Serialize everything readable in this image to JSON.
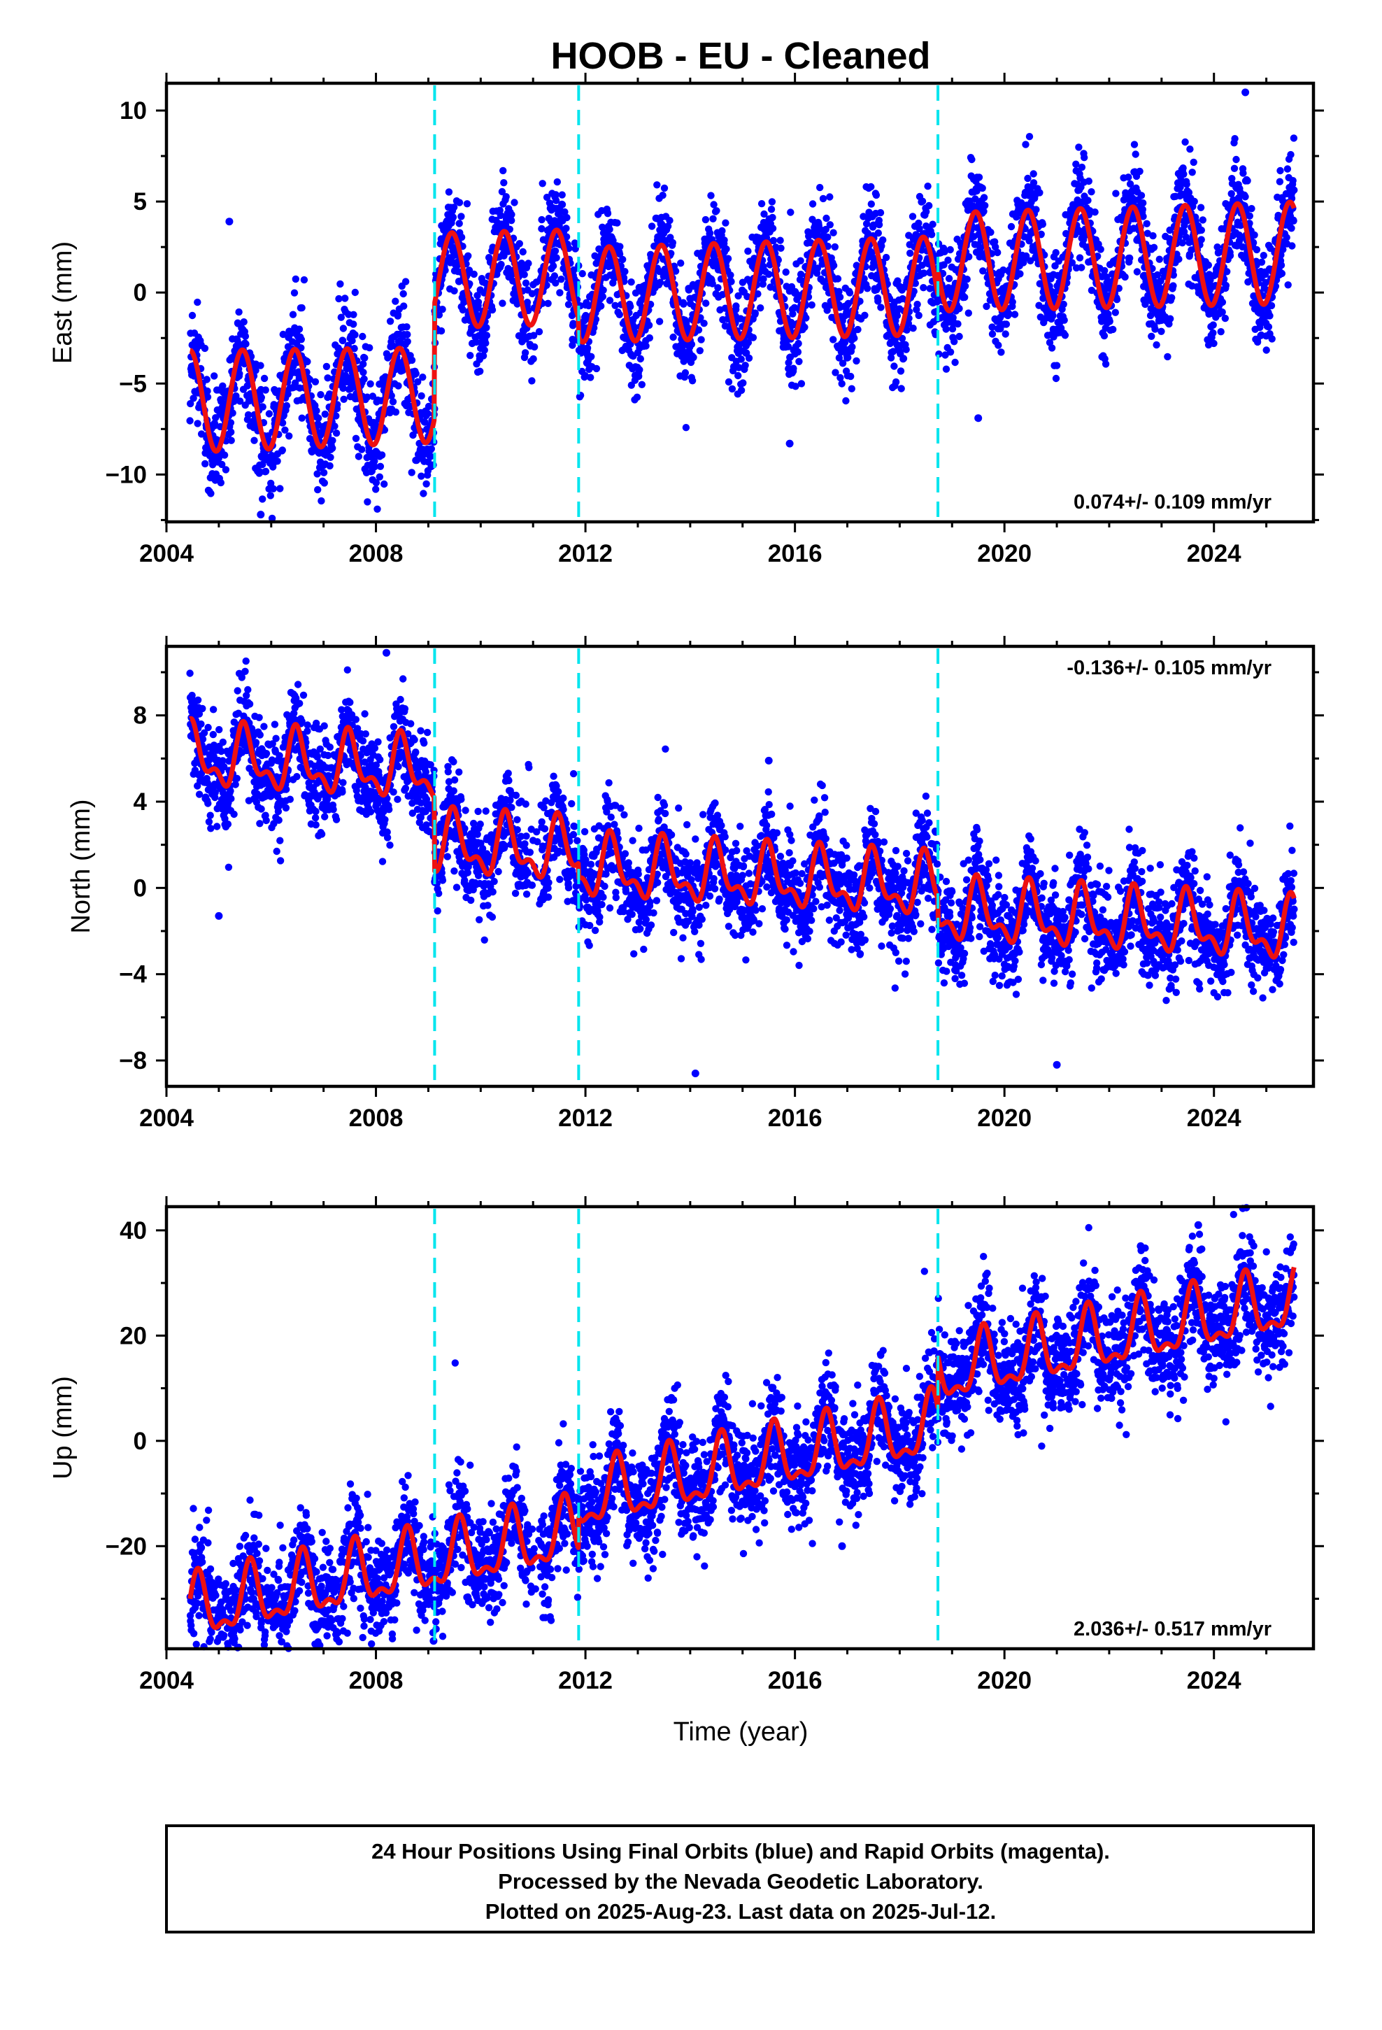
{
  "title": "HOOB  - EU - Cleaned",
  "xlabel": "Time (year)",
  "footer": {
    "line1": "24 Hour Positions Using Final Orbits (blue) and Rapid Orbits (magenta).",
    "line2": "Processed by the Nevada Geodetic Laboratory.",
    "line3": "Plotted on 2025-Aug-23. Last data on 2025-Jul-12."
  },
  "colors": {
    "data": "#0000ff",
    "model": "#ee1111",
    "steps": "#00e5ee",
    "frame": "#000000"
  },
  "chart_data": [
    {
      "type": "scatter",
      "ylabel": "East (mm)",
      "rate": "0.074+/- 0.109 mm/yr",
      "xlim": [
        2004.0,
        2025.9
      ],
      "ylim": [
        -12.6,
        11.5
      ],
      "xticks": [
        2004,
        2008,
        2012,
        2016,
        2020,
        2024
      ],
      "xtick_labels": [
        "2004",
        "2008",
        "2012",
        "2016",
        "2020",
        "2024"
      ],
      "yticks": [
        -10,
        -5,
        0,
        5,
        10
      ],
      "ytick_labels": [
        "−10",
        "−5",
        "0",
        "5",
        "10"
      ],
      "steps": [
        2009.12,
        2011.87,
        2018.73
      ],
      "data_start": 2004.45,
      "data_end": 2025.53,
      "model": {
        "offsets": [
          [
            2004.45,
            -5.2
          ],
          [
            2009.12,
            1.1
          ],
          [
            2011.87,
            0.1
          ],
          [
            2018.73,
            1.4
          ]
        ],
        "amplitudes": [
          [
            2004.45,
            2.8
          ],
          [
            2009.12,
            2.6
          ],
          [
            2011.87,
            2.6
          ],
          [
            2018.73,
            2.7
          ],
          [
            2025.53,
            2.8
          ]
        ],
        "trend_per_year": 0.074,
        "peak_phase": 0.45
      },
      "noise_sd": 1.4,
      "outliers": [
        [
          2005.2,
          3.9
        ],
        [
          2015.9,
          -8.3
        ],
        [
          2019.5,
          -6.9
        ],
        [
          2024.6,
          11.0
        ],
        [
          2005.8,
          -12.2
        ]
      ]
    },
    {
      "type": "scatter",
      "ylabel": "North (mm)",
      "rate": "-0.136+/- 0.105 mm/yr",
      "xlim": [
        2004.0,
        2025.9
      ],
      "ylim": [
        -9.2,
        11.2
      ],
      "xticks": [
        2004,
        2008,
        2012,
        2016,
        2020,
        2024
      ],
      "xtick_labels": [
        "2004",
        "2008",
        "2012",
        "2016",
        "2020",
        "2024"
      ],
      "yticks": [
        -8,
        -4,
        0,
        4,
        8
      ],
      "ytick_labels": [
        "−8",
        "−4",
        "0",
        "4",
        "8"
      ],
      "steps": [
        2009.12,
        2011.87,
        2018.73
      ],
      "data_start": 2004.45,
      "data_end": 2025.53,
      "model": {
        "offsets": [
          [
            2004.45,
            4.6
          ],
          [
            2009.12,
            1.2
          ],
          [
            2011.87,
            0.5
          ],
          [
            2018.73,
            -0.6
          ]
        ],
        "amplitudes": [
          [
            2004.45,
            1.2
          ],
          [
            2025.53,
            1.2
          ]
        ],
        "trend_per_year": -0.136,
        "peak_phase": 0.5
      },
      "noise_sd": 1.1,
      "outliers": [
        [
          2008.2,
          10.9
        ],
        [
          2014.1,
          -8.6
        ],
        [
          2021.0,
          -8.2
        ],
        [
          2015.5,
          5.9
        ],
        [
          2005.0,
          -1.3
        ]
      ]
    },
    {
      "type": "scatter",
      "ylabel": "Up (mm)",
      "rate": "2.036+/- 0.517 mm/yr",
      "xlim": [
        2004.0,
        2025.9
      ],
      "ylim": [
        -39.5,
        44.5
      ],
      "xticks": [
        2004,
        2008,
        2012,
        2016,
        2020,
        2024
      ],
      "xtick_labels": [
        "2004",
        "2008",
        "2012",
        "2016",
        "2020",
        "2024"
      ],
      "yticks": [
        -20,
        0,
        20,
        40
      ],
      "ytick_labels": [
        "−20",
        "0",
        "20",
        "40"
      ],
      "steps": [
        2009.12,
        2011.87,
        2018.73
      ],
      "data_start": 2004.45,
      "data_end": 2025.53,
      "model": {
        "offsets": [
          [
            2004.45,
            -11.0
          ],
          [
            2009.12,
            -11.0
          ],
          [
            2011.87,
            -5.0
          ],
          [
            2018.73,
            5.0
          ]
        ],
        "amplitudes": [
          [
            2004.45,
            5.5
          ],
          [
            2025.53,
            5.5
          ]
        ],
        "trend_per_year": 2.036,
        "peak_phase": 0.6
      },
      "noise_sd": 5.0,
      "outliers": [
        [
          2009.1,
          -38.0
        ],
        [
          2023.7,
          41.0
        ],
        [
          2006.8,
          -35.0
        ],
        [
          2022.6,
          37.0
        ],
        [
          2016.9,
          -20.0
        ]
      ]
    }
  ]
}
